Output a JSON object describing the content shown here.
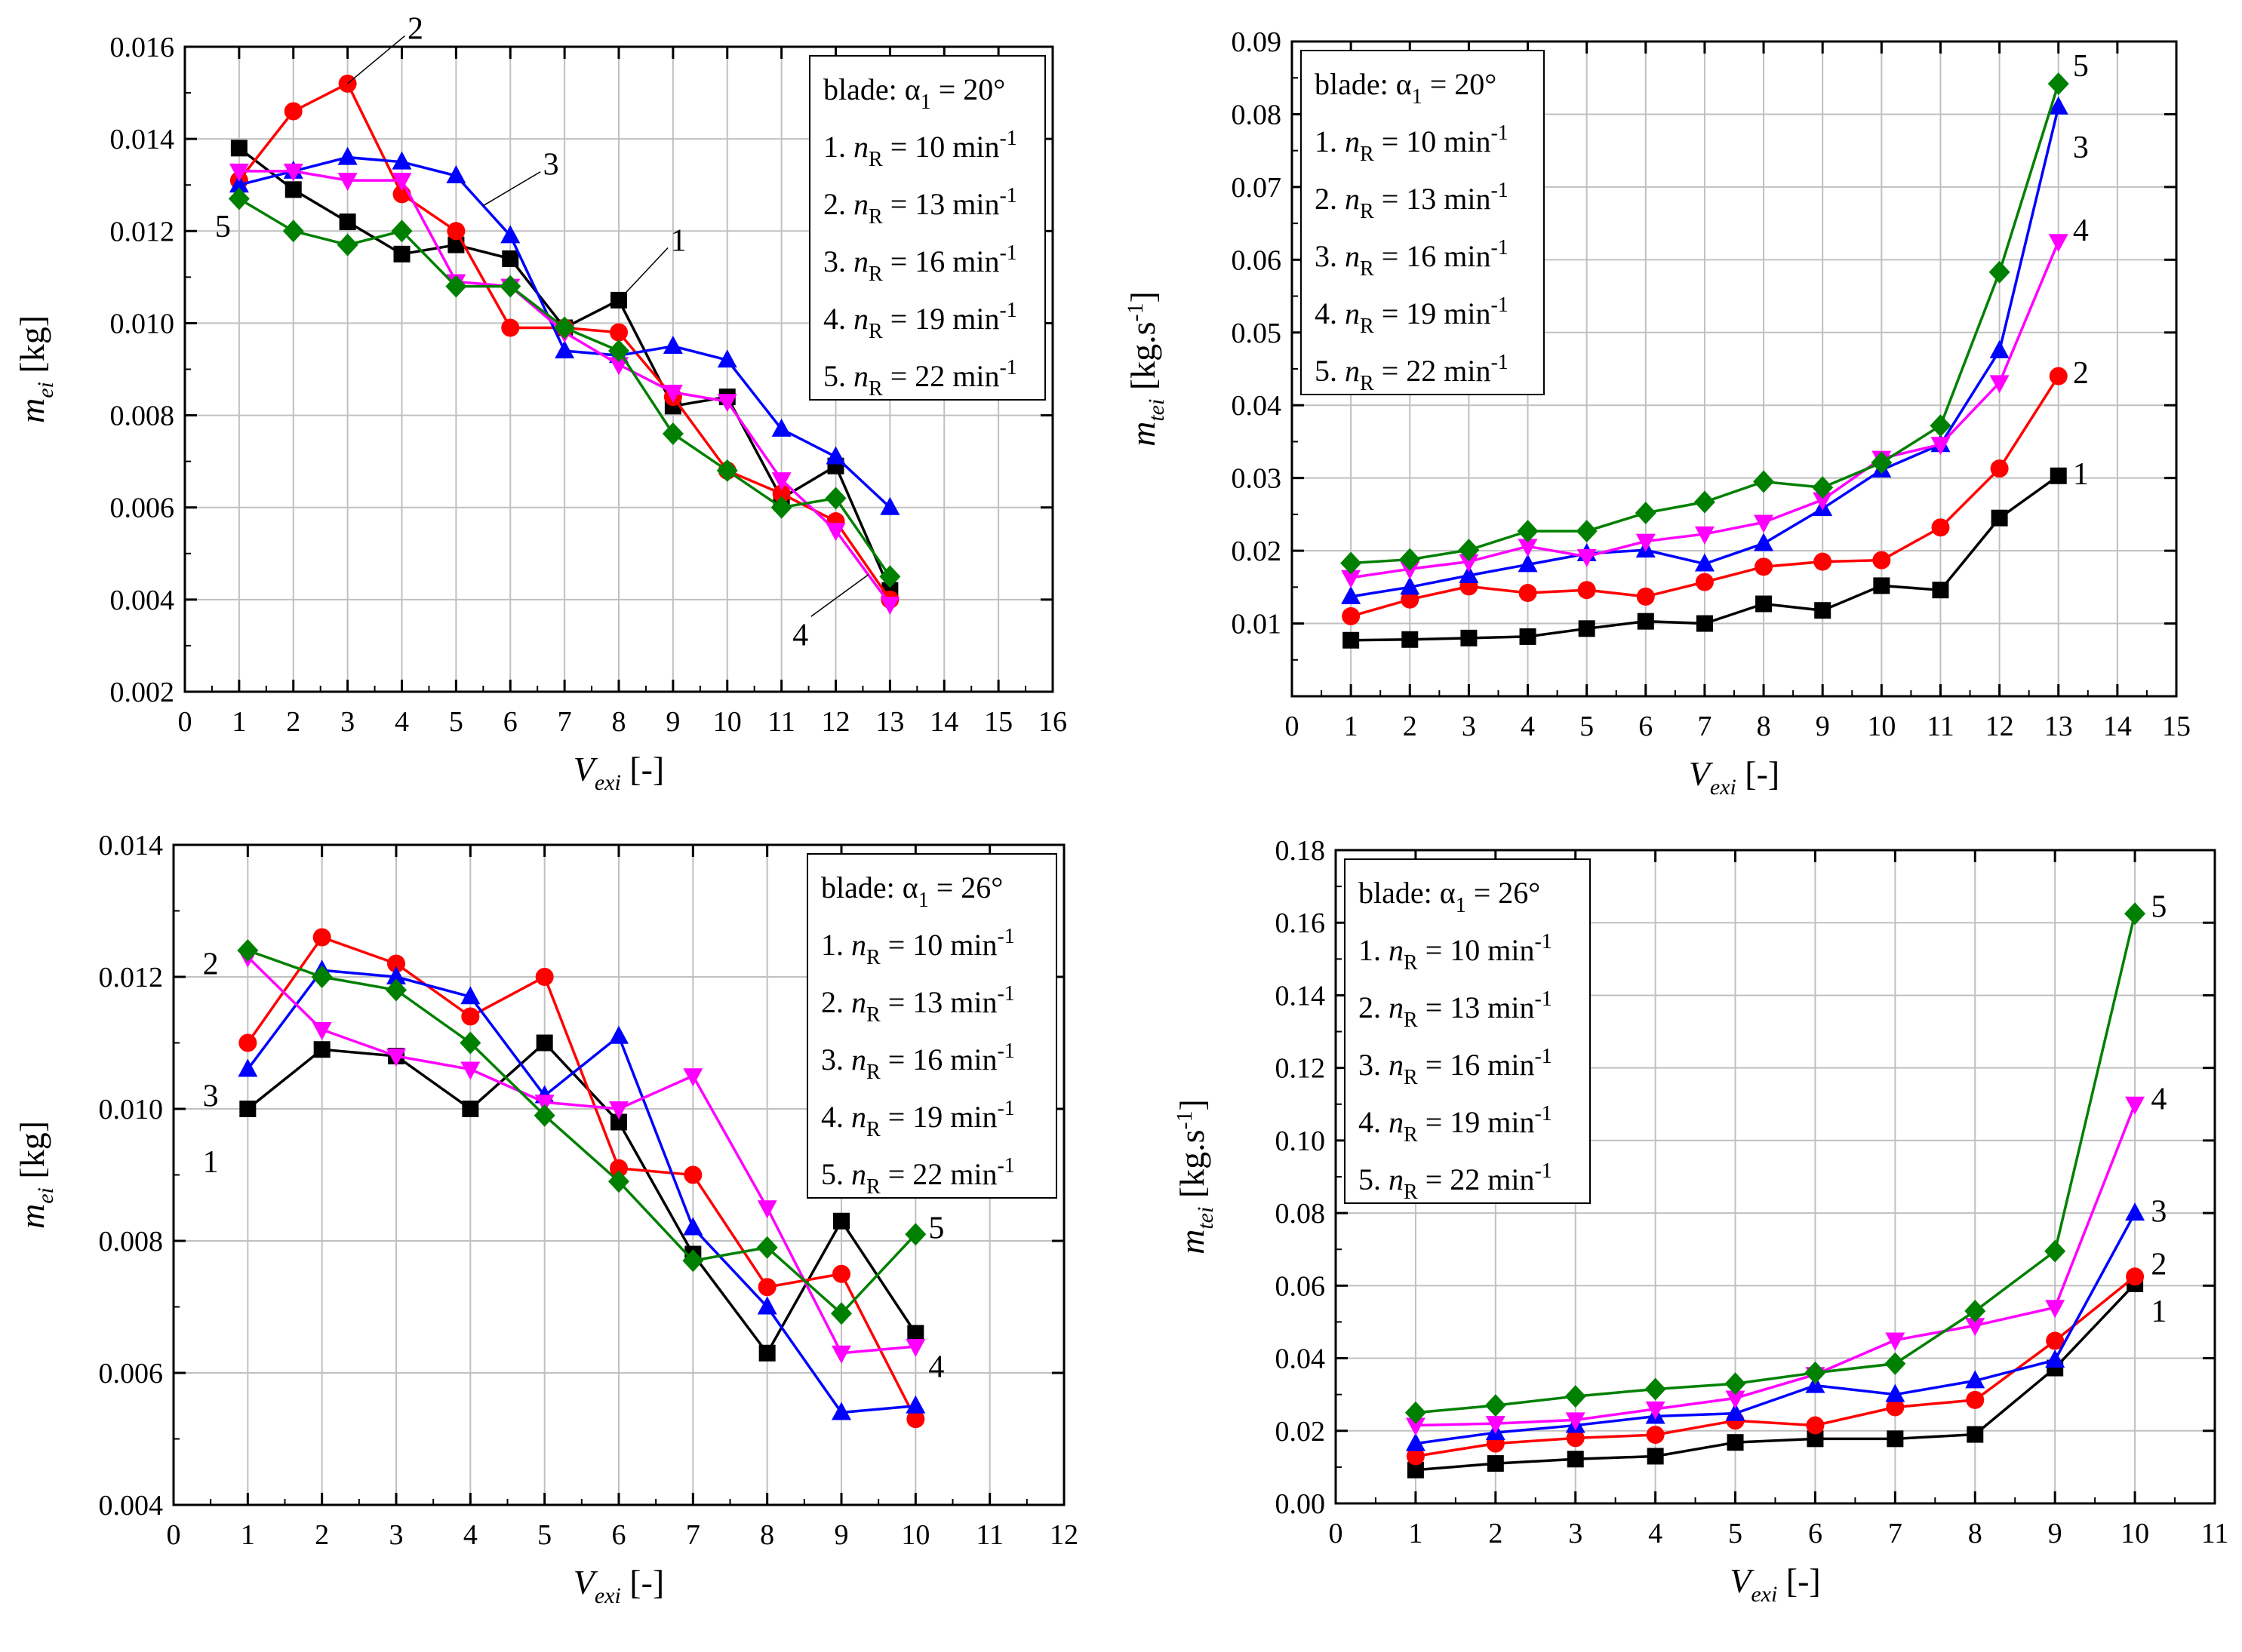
{
  "colors": {
    "series": [
      "#000000",
      "#ff0000",
      "#0000ff",
      "#ff00ff",
      "#008000"
    ],
    "grid": "#c0c0c0"
  },
  "chart_data": [
    {
      "id": "a",
      "type": "line",
      "x": [
        1,
        2,
        3,
        4,
        5,
        6,
        7,
        8,
        9,
        10,
        11,
        12,
        13
      ],
      "xlim": [
        0,
        16
      ],
      "xticks": [
        0,
        1,
        2,
        3,
        4,
        5,
        6,
        7,
        8,
        9,
        10,
        11,
        12,
        13,
        14,
        15,
        16
      ],
      "ylim": [
        0.002,
        0.016
      ],
      "yticks": [
        "0.002",
        "0.004",
        "0.006",
        "0.008",
        "0.010",
        "0.012",
        "0.014",
        "0.016"
      ],
      "xlabel": {
        "main": "V",
        "sub": "exi",
        "rest": " [-]"
      },
      "ylabel": {
        "main": "m",
        "sub": "ei",
        "rest": " [kg]"
      },
      "legend": [
        "blade: α1 = 20°",
        "1. nR = 10 min-1",
        "2. nR = 13 min-1",
        "3. nR = 16 min-1",
        "4. nR = 19 min-1",
        "5. nR = 22 min-1"
      ],
      "series": [
        {
          "name": "1. nR = 10 min-1",
          "values": [
            0.0138,
            0.0129,
            0.0122,
            0.0115,
            0.0117,
            0.0114,
            0.0099,
            0.0105,
            0.0082,
            0.0084,
            0.0062,
            0.0069,
            0.0042
          ]
        },
        {
          "name": "2. nR = 13 min-1",
          "values": [
            0.0131,
            0.0146,
            0.0152,
            0.0128,
            0.012,
            0.0099,
            0.0099,
            0.0098,
            0.0084,
            0.0068,
            0.0063,
            0.0057,
            0.004
          ]
        },
        {
          "name": "3. nR = 16 min-1",
          "values": [
            0.013,
            0.0133,
            0.0136,
            0.0135,
            0.0132,
            0.0119,
            0.0094,
            0.0093,
            0.0095,
            0.0092,
            0.0077,
            0.0071,
            0.006
          ]
        },
        {
          "name": "4. nR = 19 min-1",
          "values": [
            0.0133,
            0.0133,
            0.0131,
            0.0131,
            0.0109,
            0.0108,
            0.0098,
            0.0091,
            0.0085,
            0.0083,
            0.0066,
            0.0055,
            0.0039
          ]
        },
        {
          "name": "5. nR = 22 min-1",
          "values": [
            0.0127,
            0.012,
            0.0117,
            0.012,
            0.0108,
            0.0108,
            0.0099,
            0.0094,
            0.0076,
            0.0068,
            0.006,
            0.0062,
            0.0045
          ]
        }
      ],
      "annotations": [
        {
          "text": "2",
          "series": 1,
          "at": 3,
          "dx": 1.25,
          "dy": 0.0012
        },
        {
          "text": "3",
          "series": 2,
          "at": 5.5,
          "dx": 1.25,
          "dy": 0.0009
        },
        {
          "text": "1",
          "series": 0,
          "at": 8,
          "dx": 1.1,
          "dy": 0.0013
        },
        {
          "text": "5",
          "series": 4,
          "at": 1,
          "dx": -0.3,
          "dy": -0.0006
        },
        {
          "text": "4",
          "series": 3,
          "at": 12.6,
          "dx": -1.25,
          "dy": -0.0013
        }
      ]
    },
    {
      "id": "b",
      "type": "line",
      "x": [
        1,
        2,
        3,
        4,
        5,
        6,
        7,
        8,
        9,
        10,
        11,
        12,
        13
      ],
      "xlim": [
        0,
        15
      ],
      "xticks": [
        0,
        1,
        2,
        3,
        4,
        5,
        6,
        7,
        8,
        9,
        10,
        11,
        12,
        13,
        14,
        15
      ],
      "ylim": [
        0.0,
        0.09
      ],
      "yticks": [
        "",
        "0.01",
        "0.02",
        "0.03",
        "0.04",
        "0.05",
        "0.06",
        "0.07",
        "0.08",
        "0.09"
      ],
      "xlabel": {
        "main": "V",
        "sub": "exi",
        "rest": " [-]"
      },
      "ylabel": {
        "main": "m",
        "sub": "tei",
        "rest": " [kg.s-1]"
      },
      "legend": [
        "blade: α1 = 20°",
        "1. nR = 10 min-1",
        "2. nR = 13 min-1",
        "3. nR = 16 min-1",
        "4. nR = 19 min-1",
        "5. nR = 22 min-1"
      ],
      "series": [
        {
          "name": "1. nR = 10 min-1",
          "values": [
            0.0077,
            0.0078,
            0.008,
            0.0082,
            0.0093,
            0.0103,
            0.01,
            0.0127,
            0.0118,
            0.0152,
            0.0146,
            0.0245,
            0.0303
          ]
        },
        {
          "name": "2. nR = 13 min-1",
          "values": [
            0.011,
            0.0133,
            0.0151,
            0.0142,
            0.0146,
            0.0137,
            0.0157,
            0.0178,
            0.0185,
            0.0187,
            0.0232,
            0.0313,
            0.044
          ]
        },
        {
          "name": "3. nR = 16 min-1",
          "values": [
            0.0137,
            0.015,
            0.0166,
            0.0181,
            0.0196,
            0.0201,
            0.0182,
            0.021,
            0.0258,
            0.0311,
            0.0346,
            0.0475,
            0.081
          ]
        },
        {
          "name": "4. nR = 19 min-1",
          "values": [
            0.0163,
            0.0175,
            0.0185,
            0.0206,
            0.0192,
            0.0213,
            0.0223,
            0.0239,
            0.027,
            0.0327,
            0.0346,
            0.0431,
            0.0625
          ]
        },
        {
          "name": "5. nR = 22 min-1",
          "values": [
            0.0183,
            0.0188,
            0.0201,
            0.0227,
            0.0227,
            0.0252,
            0.0267,
            0.0295,
            0.0287,
            0.0321,
            0.0372,
            0.0583,
            0.0842
          ]
        }
      ],
      "annotations": [
        {
          "text": "5",
          "series": 4,
          "at": 13,
          "dx": 0.38,
          "dy": 0.0025
        },
        {
          "text": "3",
          "series": 2,
          "at": 13,
          "dx": 0.38,
          "dy": -0.0055
        },
        {
          "text": "4",
          "series": 3,
          "at": 13,
          "dx": 0.38,
          "dy": 0.0016
        },
        {
          "text": "2",
          "series": 1,
          "at": 13,
          "dx": 0.38,
          "dy": 0.0005
        },
        {
          "text": "1",
          "series": 0,
          "at": 13,
          "dx": 0.38,
          "dy": 0.0003
        }
      ]
    },
    {
      "id": "c",
      "type": "line",
      "x": [
        1,
        2,
        3,
        4,
        5,
        6,
        7,
        8,
        9,
        10
      ],
      "xlim": [
        0,
        12
      ],
      "xticks": [
        0,
        1,
        2,
        3,
        4,
        5,
        6,
        7,
        8,
        9,
        10,
        11,
        12
      ],
      "ylim": [
        0.004,
        0.014
      ],
      "yticks": [
        "0.004",
        "0.006",
        "0.008",
        "0.010",
        "0.012",
        "0.014"
      ],
      "xlabel": {
        "main": "V",
        "sub": "exi",
        "rest": " [-]"
      },
      "ylabel": {
        "main": "m",
        "sub": "ei",
        "rest": " [kg]"
      },
      "legend": [
        "blade: α1 = 26°",
        "1. nR = 10 min-1",
        "2. nR = 13 min-1",
        "3. nR = 16 min-1",
        "4. nR = 19 min-1",
        "5. nR = 22 min-1"
      ],
      "series": [
        {
          "name": "1. nR = 10 min-1",
          "values": [
            0.01,
            0.0109,
            0.0108,
            0.01,
            0.011,
            0.0098,
            0.0078,
            0.0063,
            0.0083,
            0.0066
          ]
        },
        {
          "name": "2. nR = 13 min-1",
          "values": [
            0.011,
            0.0126,
            0.0122,
            0.0114,
            0.012,
            0.0091,
            0.009,
            0.0073,
            0.0075,
            0.0053
          ]
        },
        {
          "name": "3. nR = 16 min-1",
          "values": [
            0.0106,
            0.0121,
            0.012,
            0.0117,
            0.0102,
            0.0111,
            0.0082,
            0.007,
            0.0054,
            0.0055
          ]
        },
        {
          "name": "4. nR = 19 min-1",
          "values": [
            0.0123,
            0.0112,
            0.0108,
            0.0106,
            0.0101,
            0.01,
            0.0105,
            0.0085,
            0.0063,
            0.0064
          ]
        },
        {
          "name": "5. nR = 22 min-1",
          "values": [
            0.0124,
            0.012,
            0.0118,
            0.011,
            0.0099,
            0.0089,
            0.0077,
            0.0079,
            0.0069,
            0.0081
          ]
        }
      ],
      "annotations": [
        {
          "text": "2",
          "series": 1,
          "at": 1,
          "dx": -0.5,
          "dy": 0.0012
        },
        {
          "text": "3",
          "series": 2,
          "at": 1,
          "dx": -0.5,
          "dy": -0.0004
        },
        {
          "text": "1",
          "series": 0,
          "at": 1,
          "dx": -0.5,
          "dy": -0.0008
        },
        {
          "text": "5",
          "series": 4,
          "at": 10,
          "dx": 0.28,
          "dy": 0.0001
        },
        {
          "text": "4",
          "series": 3,
          "at": 10,
          "dx": 0.28,
          "dy": -0.0003
        }
      ]
    },
    {
      "id": "d",
      "type": "line",
      "x": [
        1,
        2,
        3,
        4,
        5,
        6,
        7,
        8,
        9,
        10
      ],
      "xlim": [
        0,
        11
      ],
      "xticks": [
        0,
        1,
        2,
        3,
        4,
        5,
        6,
        7,
        8,
        9,
        10,
        11
      ],
      "ylim": [
        0.0,
        0.18
      ],
      "yticks": [
        "0.00",
        "0.02",
        "0.04",
        "0.06",
        "0.08",
        "0.10",
        "0.12",
        "0.14",
        "0.16",
        "0.18"
      ],
      "xlabel": {
        "main": "V",
        "sub": "exi",
        "rest": " [-]"
      },
      "ylabel": {
        "main": "m",
        "sub": "tei",
        "rest": " [kg.s-1]"
      },
      "legend": [
        "blade: α1 = 26°",
        "1. nR = 10 min-1",
        "2. nR = 13 min-1",
        "3. nR = 16 min-1",
        "4. nR = 19 min-1",
        "5. nR = 22 min-1"
      ],
      "series": [
        {
          "name": "1. nR = 10 min-1",
          "values": [
            0.0092,
            0.011,
            0.0122,
            0.013,
            0.0168,
            0.0178,
            0.0178,
            0.019,
            0.0373,
            0.0605
          ]
        },
        {
          "name": "2. nR = 13 min-1",
          "values": [
            0.013,
            0.0165,
            0.018,
            0.0189,
            0.0228,
            0.0215,
            0.0265,
            0.0285,
            0.0448,
            0.0625
          ]
        },
        {
          "name": "3. nR = 16 min-1",
          "values": [
            0.0165,
            0.0195,
            0.0215,
            0.024,
            0.0248,
            0.0325,
            0.03,
            0.0338,
            0.0395,
            0.08
          ]
        },
        {
          "name": "4. nR = 19 min-1",
          "values": [
            0.0215,
            0.022,
            0.023,
            0.026,
            0.029,
            0.0355,
            0.045,
            0.049,
            0.054,
            0.11
          ]
        },
        {
          "name": "5. nR = 22 min-1",
          "values": [
            0.025,
            0.027,
            0.0295,
            0.0315,
            0.033,
            0.036,
            0.0385,
            0.053,
            0.0695,
            0.1625
          ]
        }
      ],
      "annotations": [
        {
          "text": "5",
          "series": 4,
          "at": 10,
          "dx": 0.3,
          "dy": 0.002
        },
        {
          "text": "4",
          "series": 3,
          "at": 10,
          "dx": 0.3,
          "dy": 0.0015
        },
        {
          "text": "3",
          "series": 2,
          "at": 10,
          "dx": 0.3,
          "dy": 0.0005
        },
        {
          "text": "2",
          "series": 1,
          "at": 10,
          "dx": 0.3,
          "dy": 0.0035
        },
        {
          "text": "1",
          "series": 0,
          "at": 10,
          "dx": 0.3,
          "dy": -0.0075
        }
      ]
    }
  ]
}
